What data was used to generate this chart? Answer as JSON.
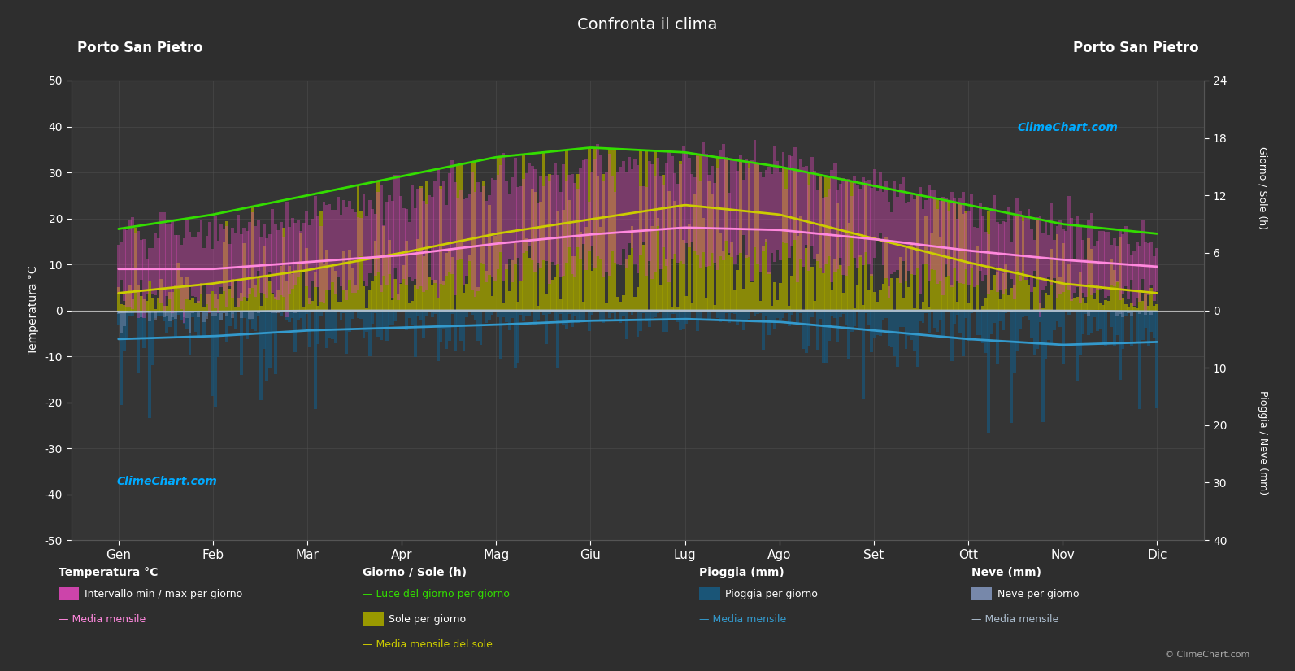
{
  "title": "Confronta il clima",
  "location_left": "Porto San Pietro",
  "location_right": "Porto San Pietro",
  "bg_color": "#2e2e2e",
  "plot_bg_color": "#353535",
  "text_color": "#ffffff",
  "grid_color": "#555555",
  "months": [
    "Gen",
    "Feb",
    "Mar",
    "Apr",
    "Mag",
    "Giu",
    "Lug",
    "Ago",
    "Set",
    "Ott",
    "Nov",
    "Dic"
  ],
  "temp_ylim": [
    -50,
    50
  ],
  "temp_mean": [
    9.0,
    9.0,
    10.5,
    12.0,
    14.5,
    16.5,
    18.0,
    17.5,
    15.5,
    13.0,
    11.0,
    9.5
  ],
  "temp_max_daily_abs": [
    16,
    17,
    20,
    24,
    28,
    31,
    32,
    31,
    27,
    22,
    18,
    15
  ],
  "temp_min_daily_abs": [
    3,
    3,
    4,
    6,
    8,
    11,
    12,
    12,
    10,
    7,
    5,
    3
  ],
  "daylight_hours": [
    8.5,
    10.0,
    12.0,
    14.0,
    16.0,
    17.0,
    16.5,
    15.0,
    13.0,
    11.0,
    9.0,
    8.0
  ],
  "sunshine_hours_daily": [
    2.0,
    3.0,
    4.5,
    6.5,
    8.5,
    10.0,
    11.5,
    10.5,
    8.0,
    5.5,
    3.0,
    2.0
  ],
  "sunshine_hours_mean": [
    1.8,
    2.8,
    4.2,
    6.0,
    8.0,
    9.5,
    11.0,
    10.0,
    7.5,
    5.0,
    2.8,
    1.8
  ],
  "rain_per_day_mm": [
    5.5,
    5.0,
    4.0,
    3.5,
    3.0,
    2.0,
    1.5,
    2.0,
    3.5,
    5.5,
    6.5,
    6.0
  ],
  "rain_mean_monthly_mm": [
    5.0,
    4.5,
    3.5,
    3.0,
    2.5,
    1.8,
    1.5,
    2.0,
    3.5,
    5.0,
    6.0,
    5.5
  ],
  "snow_per_day_mm": [
    0.5,
    0.3,
    0.05,
    0.0,
    0.0,
    0.0,
    0.0,
    0.0,
    0.0,
    0.0,
    0.05,
    0.2
  ],
  "snow_mean_monthly_mm": [
    0.3,
    0.2,
    0.02,
    0.0,
    0.0,
    0.0,
    0.0,
    0.0,
    0.0,
    0.0,
    0.02,
    0.15
  ],
  "colors": {
    "temp_fill": "#cc44aa",
    "daylight_line": "#33dd00",
    "sunshine_fill": "#999900",
    "sunshine_line": "#cccc00",
    "temp_mean_line": "#ff88dd",
    "rain_fill": "#1a5577",
    "rain_line": "#3399cc",
    "snow_fill": "#7788aa",
    "snow_line": "#aabbcc"
  },
  "right_axis_sun_ticks": [
    0,
    6,
    12,
    18,
    24
  ],
  "right_axis_rain_ticks": [
    0,
    10,
    20,
    30,
    40
  ]
}
